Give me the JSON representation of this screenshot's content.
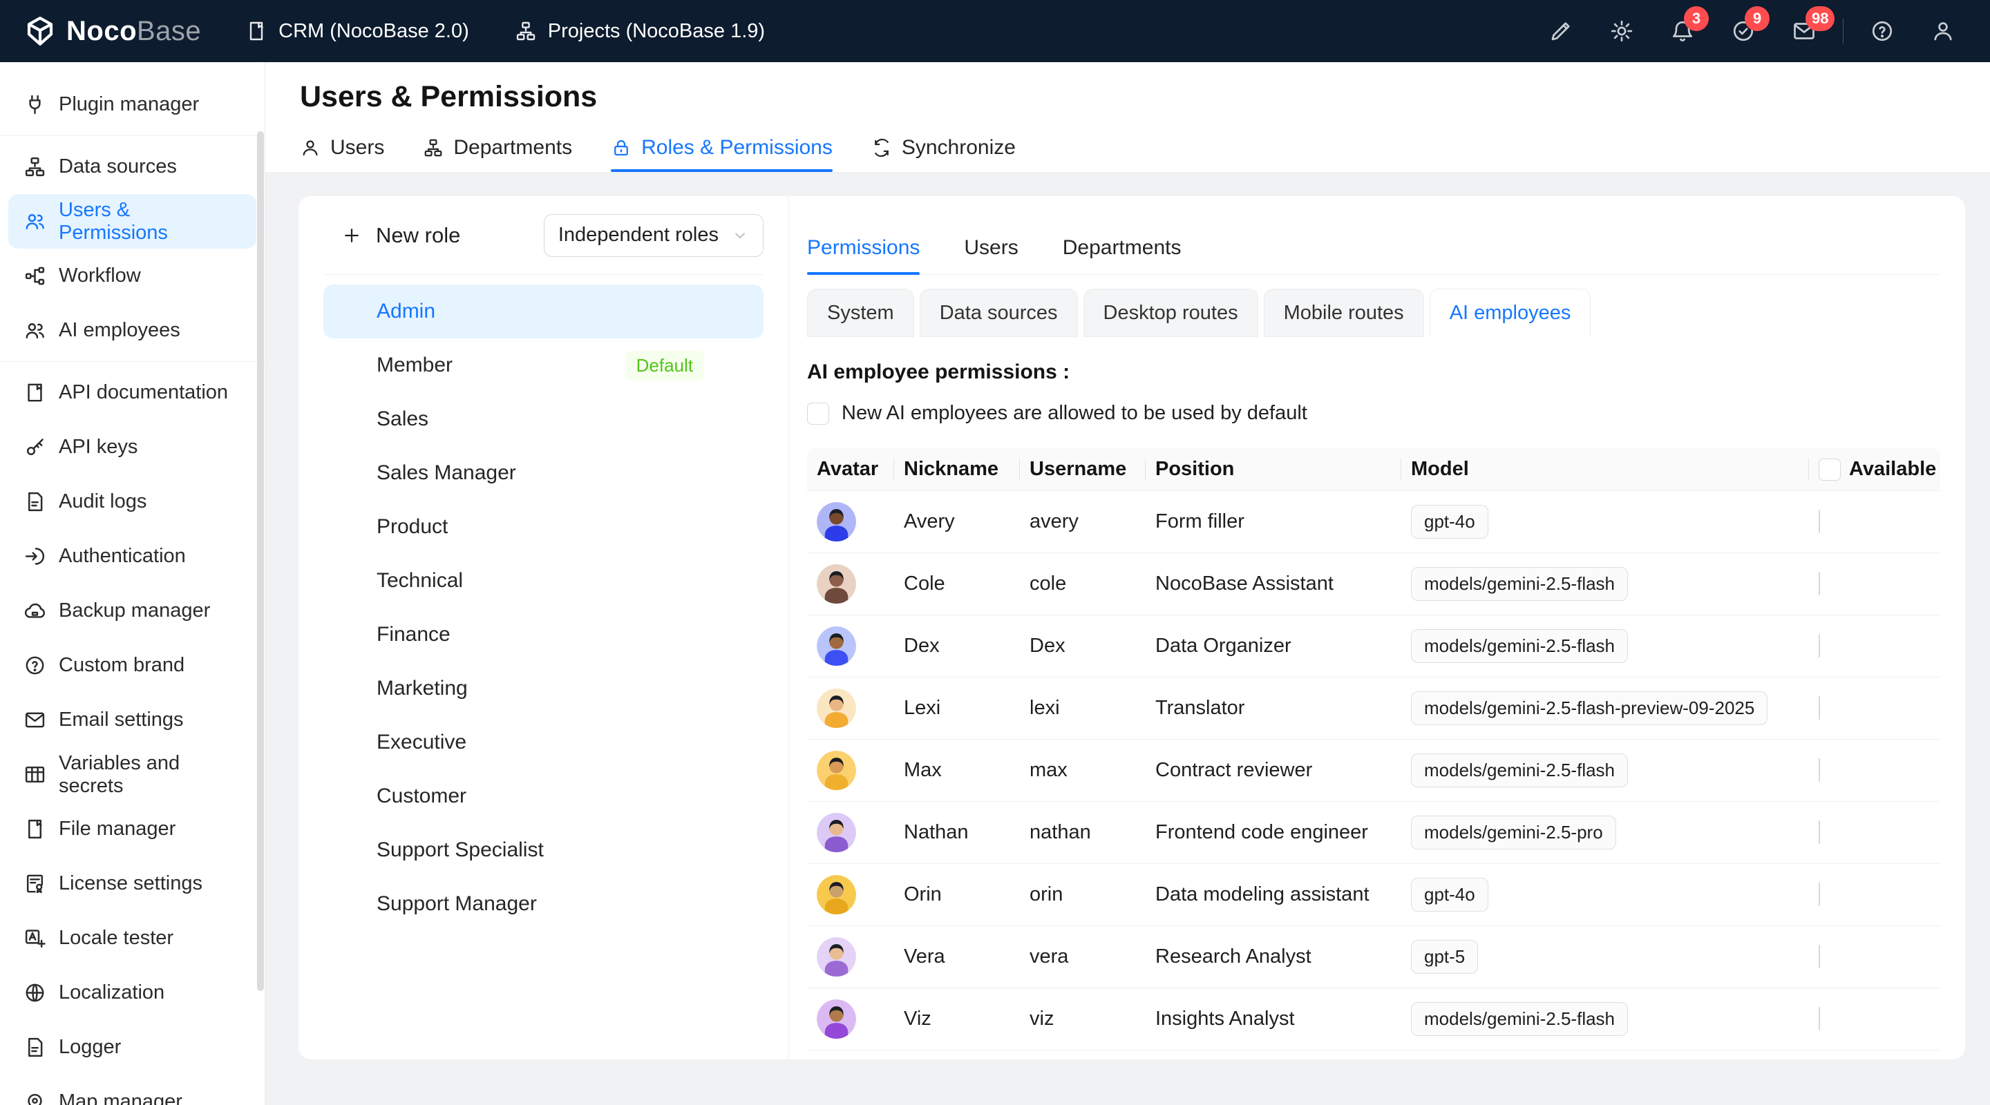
{
  "header": {
    "logo_noco": "Noco",
    "logo_base": "Base",
    "menus": [
      {
        "label": "CRM (NocoBase 2.0)",
        "icon": "file-icon"
      },
      {
        "label": "Projects (NocoBase 1.9)",
        "icon": "sitemap-icon"
      }
    ],
    "actions": [
      {
        "name": "highlighter",
        "icon": "highlighter-icon",
        "badge": ""
      },
      {
        "name": "settings",
        "icon": "gear-icon",
        "badge": ""
      },
      {
        "name": "notifications",
        "icon": "bell-icon",
        "badge": "3"
      },
      {
        "name": "tasks",
        "icon": "check-circle-icon",
        "badge": "9"
      },
      {
        "name": "messages",
        "icon": "mail-icon",
        "badge": "98"
      },
      {
        "name": "help",
        "icon": "help-icon",
        "badge": "",
        "divider_before": true
      },
      {
        "name": "account",
        "icon": "user-icon",
        "badge": ""
      }
    ]
  },
  "sidebar": {
    "items": [
      {
        "label": "Plugin manager",
        "icon": "plug-icon",
        "divider_after": true
      },
      {
        "label": "Data sources",
        "icon": "sitemap-icon"
      },
      {
        "label": "Users & Permissions",
        "icon": "team-icon",
        "active": true
      },
      {
        "label": "Workflow",
        "icon": "workflow-icon"
      },
      {
        "label": "AI employees",
        "icon": "team-icon",
        "divider_after": true
      },
      {
        "label": "API documentation",
        "icon": "book-icon"
      },
      {
        "label": "API keys",
        "icon": "key-icon"
      },
      {
        "label": "Audit logs",
        "icon": "file-text-icon"
      },
      {
        "label": "Authentication",
        "icon": "login-icon"
      },
      {
        "label": "Backup manager",
        "icon": "cloud-icon"
      },
      {
        "label": "Custom brand",
        "icon": "badge-question-icon"
      },
      {
        "label": "Email settings",
        "icon": "mail-icon"
      },
      {
        "label": "Variables and secrets",
        "icon": "table-icon"
      },
      {
        "label": "File manager",
        "icon": "file-icon"
      },
      {
        "label": "License settings",
        "icon": "license-icon"
      },
      {
        "label": "Locale tester",
        "icon": "translate-icon"
      },
      {
        "label": "Localization",
        "icon": "globe-icon"
      },
      {
        "label": "Logger",
        "icon": "file-text-icon"
      },
      {
        "label": "Map manager",
        "icon": "map-pin-icon"
      }
    ]
  },
  "page": {
    "title": "Users & Permissions",
    "tabs": [
      {
        "label": "Users",
        "icon": "user-icon"
      },
      {
        "label": "Departments",
        "icon": "sitemap-icon"
      },
      {
        "label": "Roles & Permissions",
        "icon": "lock-icon",
        "active": true
      },
      {
        "label": "Synchronize",
        "icon": "sync-icon"
      }
    ]
  },
  "roles": {
    "new_role_label": "New role",
    "filter_value": "Independent roles",
    "items": [
      {
        "name": "Admin",
        "active": true
      },
      {
        "name": "Member",
        "badge": "Default"
      },
      {
        "name": "Sales"
      },
      {
        "name": "Sales Manager"
      },
      {
        "name": "Product"
      },
      {
        "name": "Technical"
      },
      {
        "name": "Finance"
      },
      {
        "name": "Marketing"
      },
      {
        "name": "Executive"
      },
      {
        "name": "Customer"
      },
      {
        "name": "Support Specialist"
      },
      {
        "name": "Support Manager"
      }
    ]
  },
  "detail": {
    "tabs": [
      {
        "label": "Permissions",
        "active": true
      },
      {
        "label": "Users"
      },
      {
        "label": "Departments"
      }
    ],
    "sub_tabs": [
      {
        "label": "System"
      },
      {
        "label": "Data sources"
      },
      {
        "label": "Desktop routes"
      },
      {
        "label": "Mobile routes"
      },
      {
        "label": "AI employees",
        "active": true
      }
    ],
    "section_label": "AI employee permissions :",
    "allow_checkbox_label": "New AI employees are allowed to be used by default",
    "allow_checkbox_checked": false,
    "table": {
      "headers": [
        "Avatar",
        "Nickname",
        "Username",
        "Position",
        "Model",
        "Available"
      ],
      "rows": [
        {
          "nickname": "Avery",
          "username": "avery",
          "position": "Form filler",
          "model": "gpt-4o",
          "available": false,
          "avatar_bg": "#aeb6f7",
          "avatar_shirt": "#2b3ce8",
          "avatar_skin": "#7a4a2e"
        },
        {
          "nickname": "Cole",
          "username": "cole",
          "position": "NocoBase Assistant",
          "model": "models/gemini-2.5-flash",
          "available": false,
          "avatar_bg": "#e9d2c3",
          "avatar_shirt": "#6e4a3c",
          "avatar_skin": "#8d5f4a"
        },
        {
          "nickname": "Dex",
          "username": "Dex",
          "position": "Data Organizer",
          "model": "models/gemini-2.5-flash",
          "available": false,
          "avatar_bg": "#b9c4fa",
          "avatar_shirt": "#3c50f4",
          "avatar_skin": "#a06a3f"
        },
        {
          "nickname": "Lexi",
          "username": "lexi",
          "position": "Translator",
          "model": "models/gemini-2.5-flash-preview-09-2025",
          "available": false,
          "avatar_bg": "#fae6c0",
          "avatar_shirt": "#f3ab34",
          "avatar_skin": "#e8b584"
        },
        {
          "nickname": "Max",
          "username": "max",
          "position": "Contract reviewer",
          "model": "models/gemini-2.5-flash",
          "available": false,
          "avatar_bg": "#fbd170",
          "avatar_shirt": "#f0b02e",
          "avatar_skin": "#d89a55"
        },
        {
          "nickname": "Nathan",
          "username": "nathan",
          "position": "Frontend code engineer",
          "model": "models/gemini-2.5-pro",
          "available": false,
          "avatar_bg": "#ddc9f6",
          "avatar_shirt": "#8a5cd0",
          "avatar_skin": "#e6b98f"
        },
        {
          "nickname": "Orin",
          "username": "orin",
          "position": "Data modeling assistant",
          "model": "gpt-4o",
          "available": false,
          "avatar_bg": "#f7ca4e",
          "avatar_shirt": "#e8a81e",
          "avatar_skin": "#caa06a"
        },
        {
          "nickname": "Vera",
          "username": "vera",
          "position": "Research Analyst",
          "model": "gpt-5",
          "available": false,
          "avatar_bg": "#e5d2f7",
          "avatar_shirt": "#9b6ad2",
          "avatar_skin": "#e8bd92"
        },
        {
          "nickname": "Viz",
          "username": "viz",
          "position": "Insights Analyst",
          "model": "models/gemini-2.5-flash",
          "available": false,
          "avatar_bg": "#dbbaf4",
          "avatar_shirt": "#9348d8",
          "avatar_skin": "#b07a4a"
        }
      ]
    }
  },
  "colors": {
    "accent": "#1677ff",
    "header_bg": "#0d1c2e",
    "badge_red": "#ff4d4f",
    "default_green": "#52c41a",
    "selected_bg": "#e6f4ff"
  }
}
